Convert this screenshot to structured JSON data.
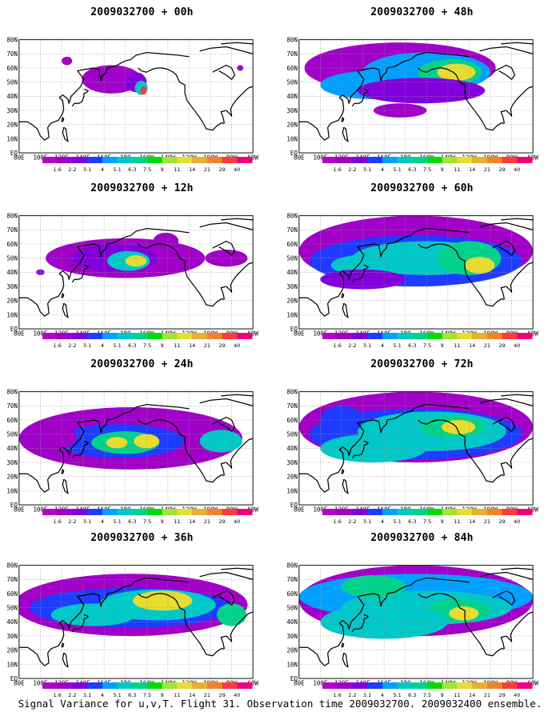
{
  "panels": [
    {
      "title": "2009032700 + 00h"
    },
    {
      "title": "2009032700 + 48h"
    },
    {
      "title": "2009032700 + 12h"
    },
    {
      "title": "2009032700 + 60h"
    },
    {
      "title": "2009032700 + 24h"
    },
    {
      "title": "2009032700 + 72h"
    },
    {
      "title": "2009032700 + 36h"
    },
    {
      "title": "2009032700 + 84h"
    }
  ],
  "lat_labels": [
    "80N",
    "70N",
    "60N",
    "50N",
    "40N",
    "30N",
    "20N",
    "10N",
    "EQ"
  ],
  "lon_labels": [
    "80E",
    "100E",
    "120E",
    "140E",
    "160E",
    "180",
    "160W",
    "140W",
    "120W",
    "100W",
    "80W",
    "60W"
  ],
  "colorbar": {
    "labels": [
      "1.6",
      "2.2",
      "3.1",
      "4",
      "5.1",
      "6.3",
      "7.5",
      "9",
      "11",
      "14",
      "21",
      "29",
      "40"
    ],
    "colors": [
      "#a000c8",
      "#8200dc",
      "#1e3cff",
      "#00a0ff",
      "#00c8c8",
      "#00d28c",
      "#00dc00",
      "#a0e632",
      "#e6dc32",
      "#e6af2d",
      "#f08228",
      "#fa3c3c",
      "#f00082"
    ]
  },
  "caption": "Signal Variance for u,v,T. Flight 31. Observation time 2009032700. 2009032400 ensemble."
}
